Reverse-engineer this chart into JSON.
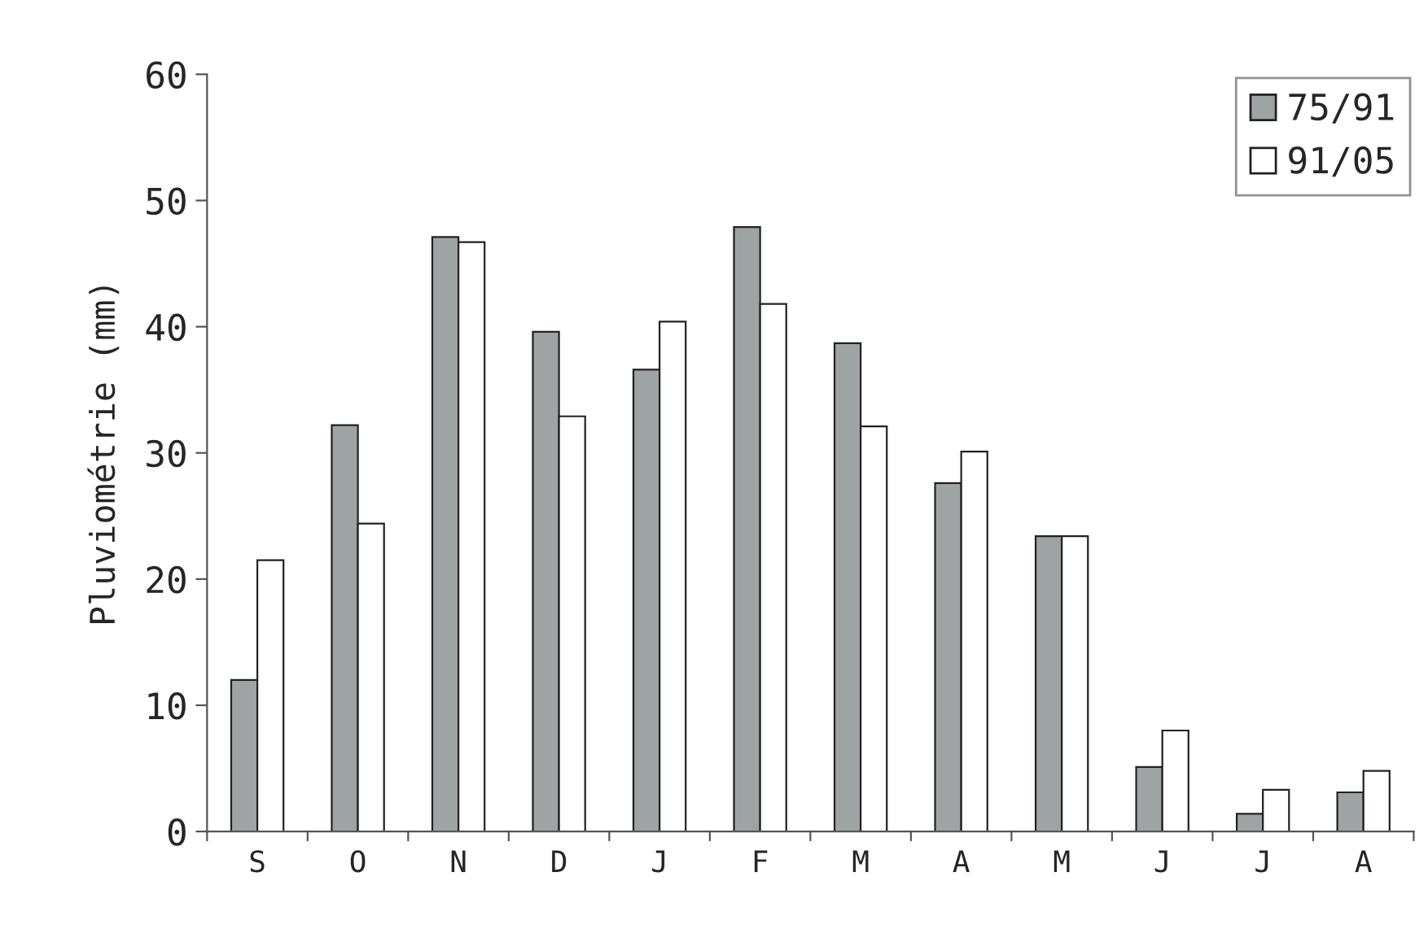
{
  "chart_data": {
    "type": "bar",
    "ylabel": "Pluviométrie (mm)",
    "categories": [
      "S",
      "O",
      "N",
      "D",
      "J",
      "F",
      "M",
      "A",
      "M",
      "J",
      "J",
      "A"
    ],
    "series": [
      {
        "name": "75/91",
        "color": "#9ea3a3",
        "values": [
          12.0,
          32.2,
          47.1,
          39.6,
          36.6,
          47.9,
          38.7,
          27.6,
          23.4,
          5.1,
          1.4,
          3.1
        ]
      },
      {
        "name": "91/05",
        "color": "#ffffff",
        "values": [
          21.5,
          24.4,
          46.7,
          32.9,
          40.4,
          41.8,
          32.1,
          30.1,
          23.4,
          8.0,
          3.3,
          4.8
        ]
      }
    ],
    "ylim": [
      0,
      60
    ],
    "yticks": [
      0,
      10,
      20,
      30,
      40,
      50,
      60
    ],
    "legend": "top right",
    "grid": false
  }
}
